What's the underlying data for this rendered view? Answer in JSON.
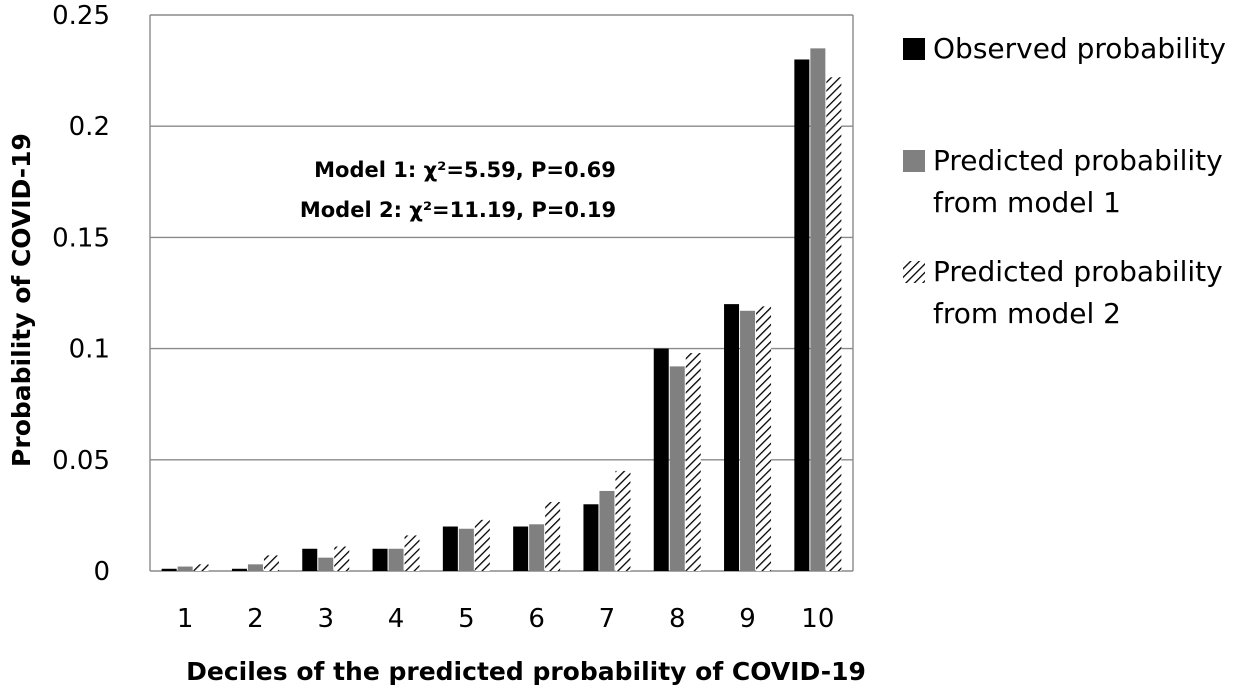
{
  "chart_data": {
    "type": "bar",
    "title": "",
    "xlabel": "Deciles of the predicted probability of COVID-19",
    "ylabel": "Probability of COVID-19",
    "ylim": [
      0,
      0.25
    ],
    "yticks": [
      "0",
      "0.05",
      "0.1",
      "0.15",
      "0.2",
      "0.25"
    ],
    "grid": "horizontal",
    "legend_position": "right",
    "categories": [
      "1",
      "2",
      "3",
      "4",
      "5",
      "6",
      "7",
      "8",
      "9",
      "10"
    ],
    "series": [
      {
        "name": "Observed probability",
        "legend_lines": [
          "Observed probability"
        ],
        "color": "#000000",
        "pattern": "solid",
        "values": [
          0.001,
          0.001,
          0.01,
          0.01,
          0.02,
          0.02,
          0.03,
          0.1,
          0.12,
          0.23
        ]
      },
      {
        "name": "Predicted probability from model 1",
        "legend_lines": [
          "Predicted probability",
          "from model 1"
        ],
        "color": "#808080",
        "pattern": "solid",
        "values": [
          0.002,
          0.003,
          0.006,
          0.01,
          0.019,
          0.021,
          0.036,
          0.092,
          0.117,
          0.235
        ]
      },
      {
        "name": "Predicted probability from model 2",
        "legend_lines": [
          "Predicted probability",
          "from model 2"
        ],
        "color": "#000000",
        "pattern": "hatched",
        "values": [
          0.003,
          0.007,
          0.011,
          0.016,
          0.023,
          0.031,
          0.045,
          0.098,
          0.119,
          0.222
        ]
      }
    ],
    "annotations": [
      "Model 1: χ²=5.59, P=0.69",
      "Model 2: χ²=11.19, P=0.19"
    ]
  }
}
